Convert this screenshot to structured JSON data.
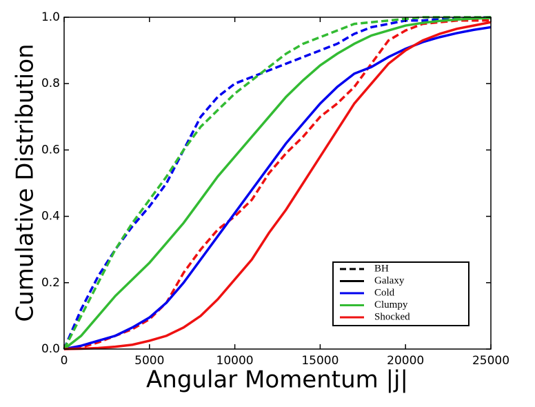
{
  "chart_data": {
    "type": "line",
    "xlabel": "Angular Momentum |j|",
    "ylabel": "Cumulative Distribution",
    "xlim": [
      0,
      25000
    ],
    "ylim": [
      0,
      1
    ],
    "xticks": [
      0,
      5000,
      10000,
      15000,
      20000,
      25000
    ],
    "yticks": [
      {
        "value": 0,
        "label": "0.0"
      },
      0.2,
      0.4,
      0.6,
      0.8,
      {
        "value": 1,
        "label": "1.0"
      }
    ],
    "x": [
      0,
      1000,
      2000,
      3000,
      4000,
      5000,
      6000,
      7000,
      8000,
      9000,
      10000,
      11000,
      12000,
      13000,
      14000,
      15000,
      16000,
      17000,
      18000,
      19000,
      20000,
      21000,
      22000,
      23000,
      24000,
      25000
    ],
    "series": [
      {
        "color": "#0000ee",
        "dashed": true,
        "values": [
          0,
          0.12,
          0.22,
          0.3,
          0.37,
          0.43,
          0.5,
          0.6,
          0.7,
          0.76,
          0.8,
          0.82,
          0.84,
          0.86,
          0.88,
          0.9,
          0.92,
          0.95,
          0.97,
          0.98,
          0.99,
          0.99,
          0.995,
          0.997,
          0.998,
          1
        ]
      },
      {
        "color": "#33bb33",
        "dashed": true,
        "values": [
          0,
          0.1,
          0.2,
          0.3,
          0.38,
          0.45,
          0.52,
          0.6,
          0.67,
          0.72,
          0.77,
          0.81,
          0.85,
          0.89,
          0.92,
          0.94,
          0.96,
          0.98,
          0.985,
          0.99,
          0.995,
          1,
          1,
          1,
          1,
          1
        ]
      },
      {
        "color": "#ee1111",
        "dashed": true,
        "values": [
          0,
          0.005,
          0.02,
          0.04,
          0.06,
          0.09,
          0.14,
          0.23,
          0.3,
          0.36,
          0.4,
          0.45,
          0.53,
          0.59,
          0.64,
          0.7,
          0.74,
          0.79,
          0.86,
          0.93,
          0.96,
          0.98,
          0.985,
          0.99,
          0.99,
          0.99
        ]
      },
      {
        "color": "#0000ee",
        "dashed": false,
        "values": [
          0,
          0.01,
          0.025,
          0.04,
          0.065,
          0.095,
          0.14,
          0.2,
          0.27,
          0.34,
          0.41,
          0.48,
          0.55,
          0.62,
          0.68,
          0.74,
          0.79,
          0.83,
          0.85,
          0.88,
          0.905,
          0.925,
          0.94,
          0.952,
          0.962,
          0.97
        ]
      },
      {
        "color": "#33bb33",
        "dashed": false,
        "values": [
          0,
          0.04,
          0.1,
          0.16,
          0.21,
          0.26,
          0.32,
          0.38,
          0.45,
          0.52,
          0.58,
          0.64,
          0.7,
          0.76,
          0.81,
          0.855,
          0.89,
          0.92,
          0.945,
          0.96,
          0.975,
          0.983,
          0.989,
          0.993,
          0.996,
          0.998
        ]
      },
      {
        "color": "#ee1111",
        "dashed": false,
        "values": [
          0,
          0.001,
          0.003,
          0.007,
          0.013,
          0.025,
          0.04,
          0.065,
          0.1,
          0.15,
          0.21,
          0.27,
          0.35,
          0.42,
          0.5,
          0.58,
          0.66,
          0.74,
          0.8,
          0.86,
          0.9,
          0.93,
          0.95,
          0.965,
          0.975,
          0.985
        ]
      }
    ],
    "legend": [
      {
        "label": "BH",
        "color": "#000000",
        "dashed": true
      },
      {
        "label": "Galaxy",
        "color": "#000000",
        "dashed": false
      },
      {
        "label": "Cold",
        "color": "#0000ee",
        "dashed": false
      },
      {
        "label": "Clumpy",
        "color": "#33bb33",
        "dashed": false
      },
      {
        "label": "Shocked",
        "color": "#ee1111",
        "dashed": false
      }
    ]
  }
}
